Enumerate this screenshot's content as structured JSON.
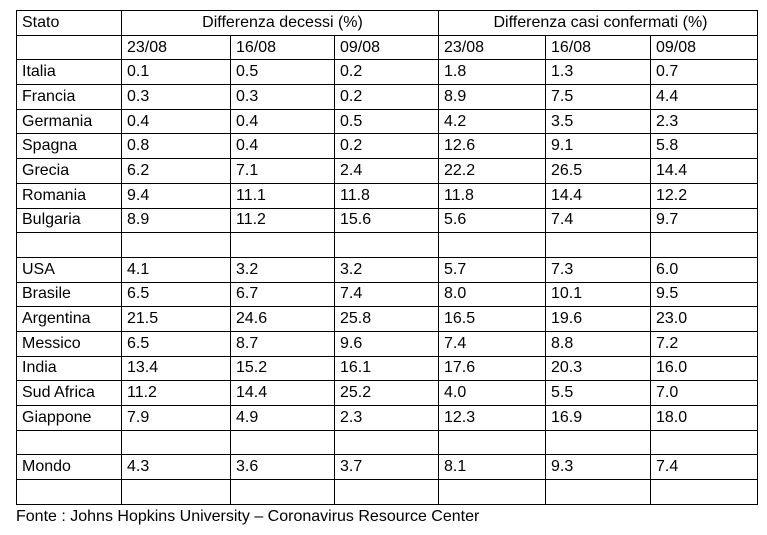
{
  "table": {
    "corner": "Stato",
    "group_headers": [
      "Differenza decessi (%)",
      "Differenza casi confermati (%)"
    ],
    "dates": [
      [
        "23/08",
        "16/08",
        "09/08"
      ],
      [
        "23/08",
        "16/08",
        "09/08"
      ]
    ],
    "groups": [
      [
        [
          "Italia",
          "0.1",
          "0.5",
          "0.2",
          "1.8",
          "1.3",
          "0.7"
        ],
        [
          "Francia",
          "0.3",
          "0.3",
          "0.2",
          "8.9",
          "7.5",
          "4.4"
        ],
        [
          "Germania",
          "0.4",
          "0.4",
          "0.5",
          "4.2",
          "3.5",
          "2.3"
        ],
        [
          "Spagna",
          "0.8",
          "0.4",
          "0.2",
          "12.6",
          "9.1",
          "5.8"
        ],
        [
          "Grecia",
          "6.2",
          "7.1",
          "2.4",
          "22.2",
          "26.5",
          "14.4"
        ],
        [
          "Romania",
          "9.4",
          "11.1",
          "11.8",
          "11.8",
          "14.4",
          "12.2"
        ],
        [
          "Bulgaria",
          "8.9",
          "11.2",
          "15.6",
          "5.6",
          "7.4",
          "9.7"
        ]
      ],
      [
        [
          "USA",
          "4.1",
          "3.2",
          "3.2",
          "5.7",
          "7.3",
          "6.0"
        ],
        [
          "Brasile",
          "6.5",
          "6.7",
          "7.4",
          "8.0",
          "10.1",
          "9.5"
        ],
        [
          "Argentina",
          "21.5",
          "24.6",
          "25.8",
          "16.5",
          "19.6",
          "23.0"
        ],
        [
          "Messico",
          "6.5",
          "8.7",
          "9.6",
          "7.4",
          "8.8",
          "7.2"
        ],
        [
          "India",
          "13.4",
          "15.2",
          "16.1",
          "17.6",
          "20.3",
          "16.0"
        ],
        [
          "Sud Africa",
          "11.2",
          "14.4",
          "25.2",
          "4.0",
          "5.5",
          "7.0"
        ],
        [
          "Giappone",
          "7.9",
          "4.9",
          "2.3",
          "12.3",
          "16.9",
          "18.0"
        ]
      ],
      [
        [
          "Mondo",
          "4.3",
          "3.6",
          "3.7",
          "8.1",
          "9.3",
          "7.4"
        ]
      ]
    ]
  },
  "footer": "Fonte : Johns Hopkins University – Coronavirus Resource Center"
}
